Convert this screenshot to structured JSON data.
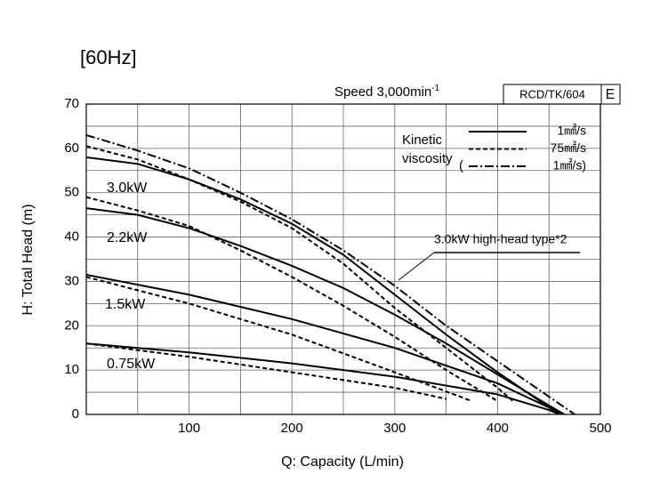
{
  "chart_data": {
    "type": "line",
    "title": "[60Hz]",
    "speed": "Speed 3,000min",
    "speed_sup": "-1",
    "code": "RCD/TK/604",
    "code_suffix": "E",
    "x_label": "Q: Capacity (L/min)",
    "y_label": "H: Total Head (m)",
    "xlim": [
      0,
      500
    ],
    "ylim": [
      0,
      70
    ],
    "xticks": [
      100,
      200,
      300,
      400,
      500
    ],
    "yticks": [
      0,
      10,
      20,
      30,
      40,
      50,
      60,
      70
    ],
    "xminorticks": [
      50,
      150,
      250,
      350,
      450
    ],
    "yminorticks": [
      5,
      15,
      25,
      35,
      45,
      55,
      65
    ],
    "grid": true,
    "legend_title": [
      "Kinetic",
      "viscosity"
    ],
    "legend_open": "(",
    "legend": [
      {
        "label": "1㎟/s",
        "dash": "solid",
        "color": "#000000"
      },
      {
        "label": "75㎟/s",
        "dash": "dashed",
        "color": "#000000"
      },
      {
        "label": "1㎟/s)",
        "dash": "dashdot",
        "color": "#000000"
      }
    ],
    "groups": [
      {
        "label": "3.0kW",
        "curves": [
          {
            "style": 0,
            "x": [
              0,
              50,
              100,
              150,
              200,
              250,
              300,
              350,
              400,
              460
            ],
            "y": [
              58,
              56.5,
              53,
              48.5,
              43,
              36,
              27,
              18,
              9.5,
              0
            ]
          },
          {
            "style": 1,
            "x": [
              0,
              50,
              100,
              150,
              200,
              250,
              300,
              350,
              400,
              415
            ],
            "y": [
              60.5,
              57.5,
              53,
              48,
              42,
              34,
              24,
              15,
              6,
              3
            ]
          }
        ]
      },
      {
        "label": "2.2kW",
        "curves": [
          {
            "style": 0,
            "x": [
              0,
              50,
              100,
              150,
              200,
              250,
              300,
              350,
              400,
              450,
              465
            ],
            "y": [
              46.5,
              45,
              42,
              38,
              33.5,
              28.5,
              22.5,
              16,
              9,
              2,
              0
            ]
          },
          {
            "style": 1,
            "x": [
              0,
              50,
              100,
              150,
              200,
              250,
              300,
              350,
              400
            ],
            "y": [
              49,
              46,
              42.5,
              37,
              31,
              24.5,
              17.5,
              10,
              3
            ]
          }
        ]
      },
      {
        "label": "1.5kW",
        "curves": [
          {
            "style": 0,
            "x": [
              0,
              100,
              200,
              300,
              400,
              455,
              465
            ],
            "y": [
              31.5,
              27,
              21.5,
              15,
              7,
              1,
              0
            ]
          },
          {
            "style": 1,
            "x": [
              0,
              50,
              100,
              200,
              300,
              375
            ],
            "y": [
              31,
              28,
              25,
              18,
              9.5,
              3
            ]
          }
        ]
      },
      {
        "label": "0.75kW",
        "curves": [
          {
            "style": 0,
            "x": [
              0,
              100,
              200,
              300,
              400,
              450,
              460
            ],
            "y": [
              16,
              14,
              11.5,
              8.5,
              4.5,
              1,
              0
            ]
          },
          {
            "style": 1,
            "x": [
              0,
              50,
              100,
              200,
              300,
              350
            ],
            "y": [
              16,
              14.5,
              13,
              9.5,
              6,
              3.5
            ]
          }
        ]
      },
      {
        "label": "3.0kW high-head type*2",
        "curves": [
          {
            "style": 2,
            "x": [
              0,
              50,
              100,
              150,
              200,
              250,
              300,
              350,
              400,
              450,
              475
            ],
            "y": [
              63,
              59.5,
              55.5,
              50,
              44,
              37,
              29,
              20,
              12,
              4,
              0
            ]
          }
        ]
      }
    ]
  }
}
